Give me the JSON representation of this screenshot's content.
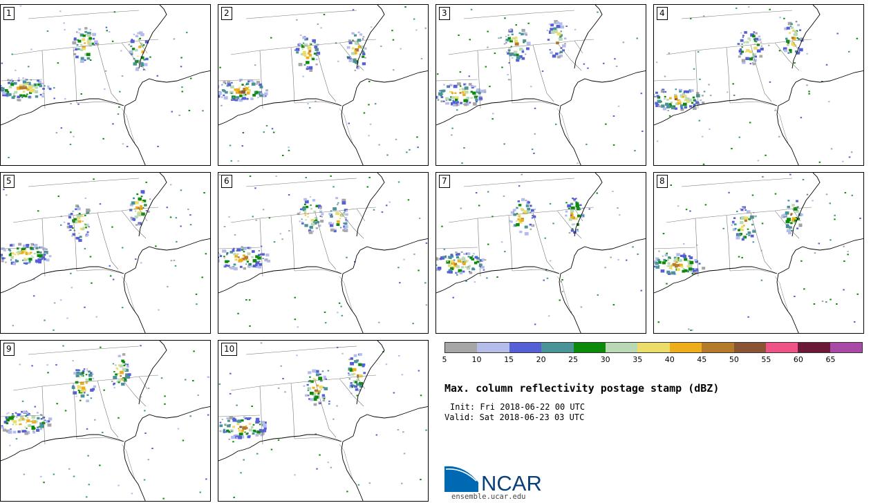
{
  "title": "Max. column reflectivity postage stamp (dBZ)",
  "init": "Init: Fri 2018-06-22 00 UTC",
  "valid": "Valid: Sat 2018-06-23 03 UTC",
  "panels": [
    {
      "label": "1",
      "storm_seed": 11
    },
    {
      "label": "2",
      "storm_seed": 23
    },
    {
      "label": "3",
      "storm_seed": 37
    },
    {
      "label": "4",
      "storm_seed": 41
    },
    {
      "label": "5",
      "storm_seed": 53
    },
    {
      "label": "6",
      "storm_seed": 67
    },
    {
      "label": "7",
      "storm_seed": 71
    },
    {
      "label": "8",
      "storm_seed": 83
    },
    {
      "label": "9",
      "storm_seed": 97
    },
    {
      "label": "10",
      "storm_seed": 101
    }
  ],
  "colorbar": {
    "unit": "dBZ",
    "ticks": [
      "5",
      "10",
      "15",
      "20",
      "25",
      "30",
      "35",
      "40",
      "45",
      "50",
      "55",
      "60",
      "65"
    ],
    "colors": [
      "#a6a6a6",
      "#b4bde9",
      "#5560d6",
      "#4a9396",
      "#0b8a0b",
      "#b8d9b4",
      "#ecdc6a",
      "#eeae1c",
      "#b47b2a",
      "#8a5535",
      "#ee5485",
      "#6a1a36",
      "#a84aa6"
    ]
  },
  "logo": {
    "text": "NCAR",
    "url_text": "ensemble.ucar.edu",
    "colors": {
      "blue": "#0069b4",
      "dark": "#0a3f7a"
    }
  }
}
